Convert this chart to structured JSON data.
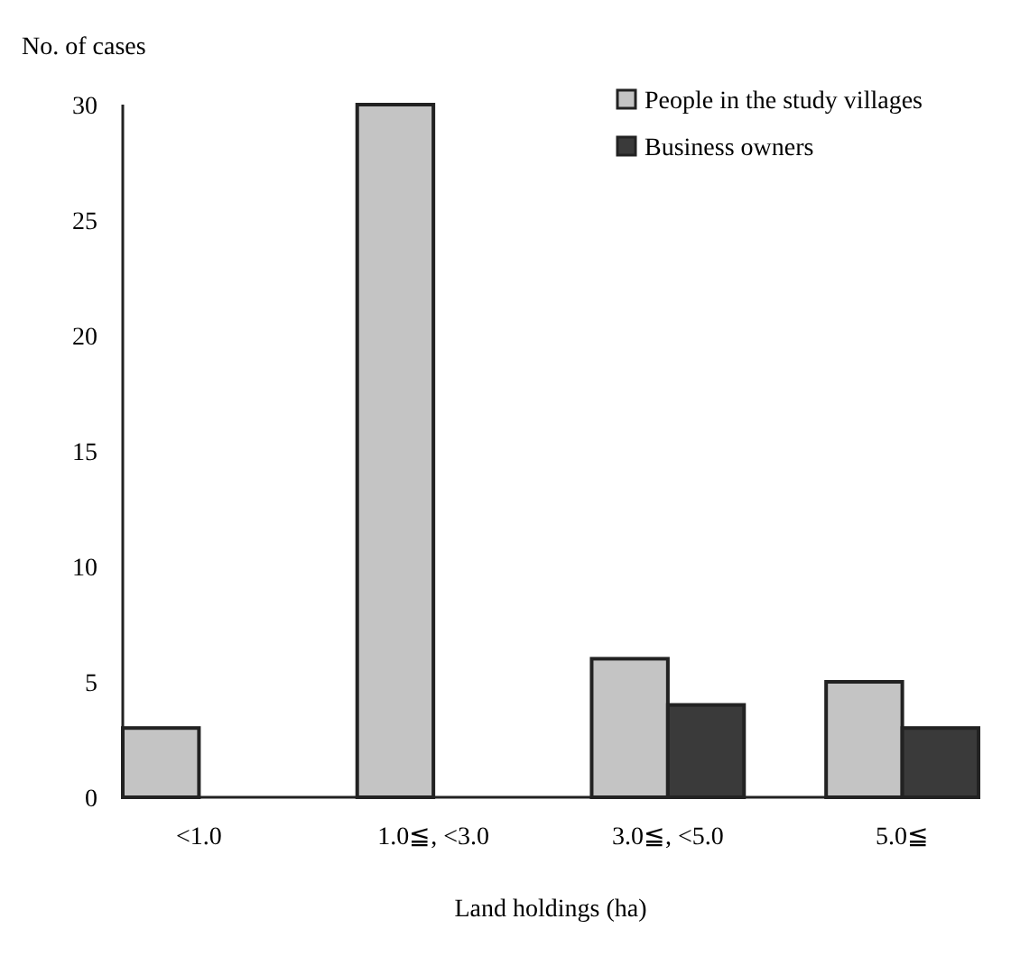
{
  "chart_data": {
    "type": "bar",
    "ylabel": "No. of cases",
    "xlabel": "Land holdings (ha)",
    "categories": [
      "<1.0",
      "1.0≦, <3.0",
      "3.0≦, <5.0",
      "5.0≦"
    ],
    "series": [
      {
        "name": "People in the study villages",
        "color": "#c4c4c4",
        "values": [
          3,
          30,
          6,
          5
        ]
      },
      {
        "name": "Business owners",
        "color": "#3a3a3a",
        "values": [
          0,
          0,
          4,
          3
        ]
      }
    ],
    "ylim": [
      0,
      30
    ],
    "yticks": [
      0,
      5,
      10,
      15,
      20,
      25,
      30
    ],
    "legend": "top right",
    "grid": false
  }
}
